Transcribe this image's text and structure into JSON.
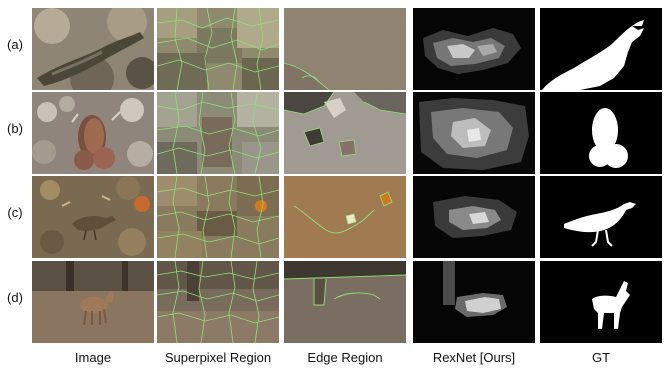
{
  "rows": [
    {
      "label": "(a)"
    },
    {
      "label": "(b)"
    },
    {
      "label": "(c)"
    },
    {
      "label": "(d)"
    }
  ],
  "columns": [
    {
      "label": "Image"
    },
    {
      "label": "Superpixel Region"
    },
    {
      "label": "Edge Region"
    },
    {
      "label": "RexNet [Ours]"
    },
    {
      "label": "GT"
    }
  ]
}
